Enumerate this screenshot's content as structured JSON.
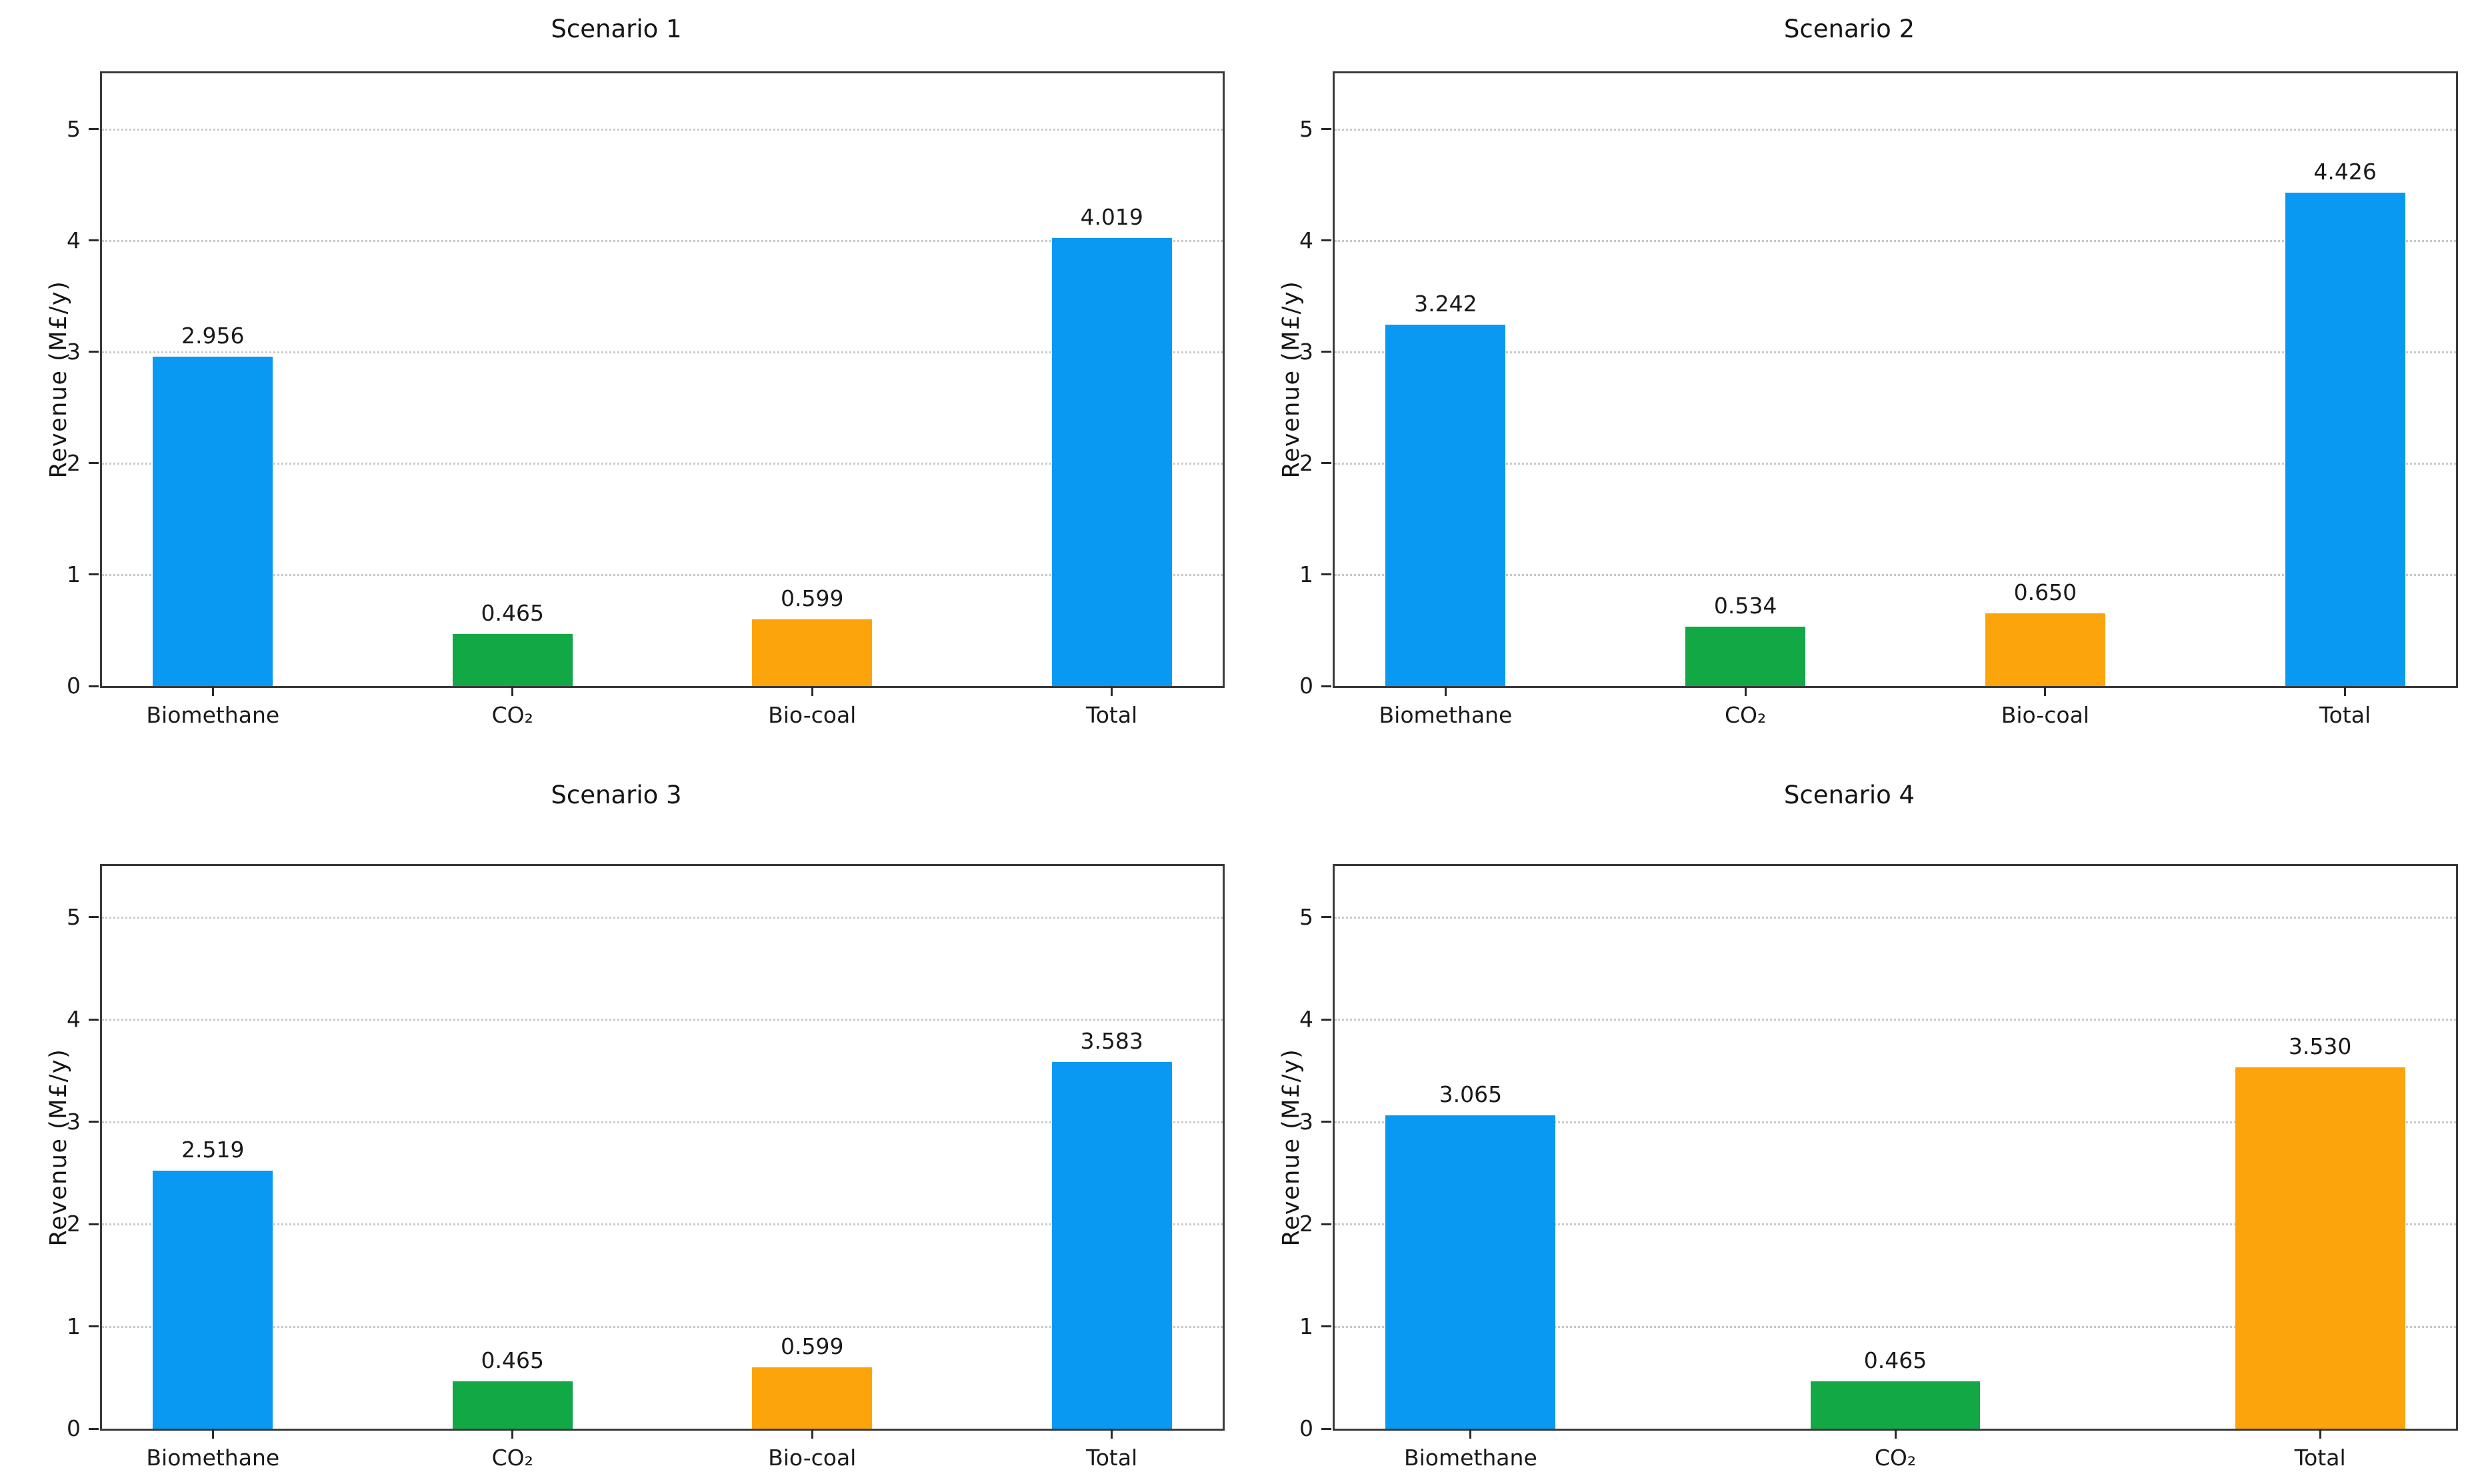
{
  "figure": {
    "background": "#ffffff"
  },
  "style": {
    "axis_color": "#3a3a3a",
    "grid_color": "#c9c9c9",
    "tick_color": "#2a2a2a",
    "text_color": "#1a1a1a"
  },
  "palette": {
    "blue": "#0A99F2",
    "green": "#12A845",
    "orange": "#FCA40C"
  },
  "chart_data": [
    {
      "type": "bar",
      "title": "Scenario 1",
      "ylabel": "Revenue (M£/y)",
      "categories": [
        "Biomethane",
        "CO₂",
        "Bio-coal",
        "Total"
      ],
      "values": [
        2.956,
        0.465,
        0.599,
        4.019
      ],
      "value_labels": [
        "2.956",
        "0.465",
        "0.599",
        "4.019"
      ],
      "bar_colors": [
        "blue",
        "green",
        "orange",
        "blue"
      ],
      "yticks": [
        0,
        1,
        2,
        3,
        4,
        5
      ],
      "ylim": [
        0,
        5.5
      ],
      "grid": "horizontal-dotted",
      "bar_width": 0.4
    },
    {
      "type": "bar",
      "title": "Scenario 2",
      "ylabel": "Revenue (M£/y)",
      "categories": [
        "Biomethane",
        "CO₂",
        "Bio-coal",
        "Total"
      ],
      "values": [
        3.242,
        0.534,
        0.65,
        4.426
      ],
      "value_labels": [
        "3.242",
        "0.534",
        "0.650",
        "4.426"
      ],
      "bar_colors": [
        "blue",
        "green",
        "orange",
        "blue"
      ],
      "yticks": [
        0,
        1,
        2,
        3,
        4,
        5
      ],
      "ylim": [
        0,
        5.5
      ],
      "grid": "horizontal-dotted",
      "bar_width": 0.4
    },
    {
      "type": "bar",
      "title": "Scenario 3",
      "ylabel": "Revenue (M£/y)",
      "categories": [
        "Biomethane",
        "CO₂",
        "Bio-coal",
        "Total"
      ],
      "values": [
        2.519,
        0.465,
        0.599,
        3.583
      ],
      "value_labels": [
        "2.519",
        "0.465",
        "0.599",
        "3.583"
      ],
      "bar_colors": [
        "blue",
        "green",
        "orange",
        "blue"
      ],
      "yticks": [
        0,
        1,
        2,
        3,
        4,
        5
      ],
      "ylim": [
        0,
        5.5
      ],
      "grid": "horizontal-dotted",
      "bar_width": 0.4
    },
    {
      "type": "bar",
      "title": "Scenario 4",
      "ylabel": "Revenue (M£/y)",
      "categories": [
        "Biomethane",
        "CO₂",
        "Total"
      ],
      "values": [
        3.065,
        0.465,
        3.53
      ],
      "value_labels": [
        "3.065",
        "0.465",
        "3.530"
      ],
      "bar_colors": [
        "blue",
        "green",
        "orange"
      ],
      "yticks": [
        0,
        1,
        2,
        3,
        4,
        5
      ],
      "ylim": [
        0,
        5.5
      ],
      "grid": "horizontal-dotted",
      "bar_width": 0.4
    }
  ]
}
